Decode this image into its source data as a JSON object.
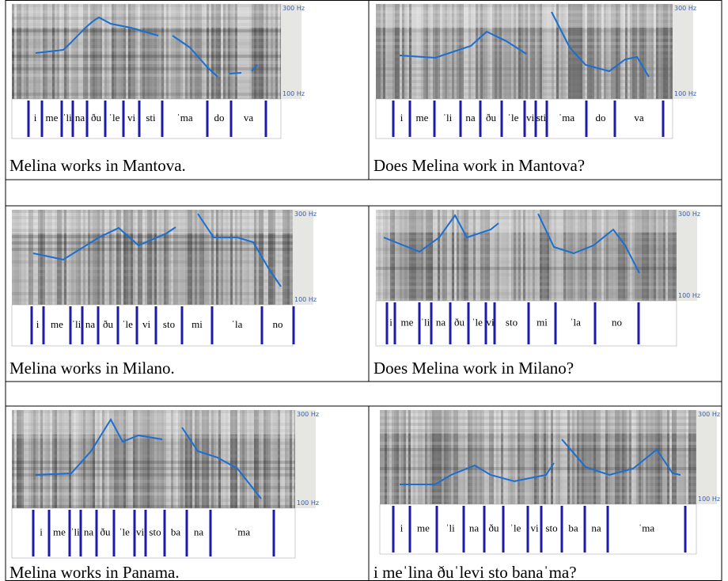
{
  "panels": [
    {
      "hz_top": "300 Hz",
      "hz_bottom": "100 Hz",
      "syllables": [
        "i",
        "me",
        "ˈli",
        "na",
        "ðu",
        "ˈle",
        "vi",
        "sti",
        "ˈma",
        "do",
        "va"
      ],
      "caption": "Melina works in Mantova."
    },
    {
      "hz_top": "300 Hz",
      "hz_bottom": "100 Hz",
      "syllables": [
        "i",
        "me",
        "ˈli",
        "na",
        "ðu",
        "ˈle",
        "vi",
        "sti",
        "ˈma",
        "do",
        "va"
      ],
      "caption": "Does Melina work in Mantova?"
    },
    {
      "hz_top": "300 Hz",
      "hz_bottom": "100 Hz",
      "syllables": [
        "i",
        "me",
        "ˈli",
        "na",
        "ðu",
        "ˈle",
        "vi",
        "sto",
        "mi",
        "ˈla",
        "no"
      ],
      "caption": "Melina works in Milano."
    },
    {
      "hz_top": "300 Hz",
      "hz_bottom": "100 Hz",
      "syllables": [
        "i",
        "me",
        "ˈli",
        "na",
        "ðu",
        "ˈle",
        "vi",
        "sto",
        "mi",
        "ˈla",
        "no"
      ],
      "caption": "Does Melina work in Milano?"
    },
    {
      "hz_top": "300 Hz",
      "hz_bottom": "100 Hz",
      "syllables": [
        "i",
        "me",
        "ˈli",
        "na",
        "ðu",
        "ˈle",
        "vi",
        "sto",
        "ba",
        "na",
        "ˈma"
      ],
      "caption": "Melina works in Panama."
    },
    {
      "hz_top": "300 Hz",
      "hz_bottom": "100 Hz",
      "syllables": [
        "i",
        "me",
        "ˈli",
        "na",
        "ðu",
        "ˈle",
        "vi",
        "sto",
        "ba",
        "na",
        "ˈma"
      ],
      "caption": "i meˈlina ðuˈlevi sto banaˈma?"
    }
  ]
}
